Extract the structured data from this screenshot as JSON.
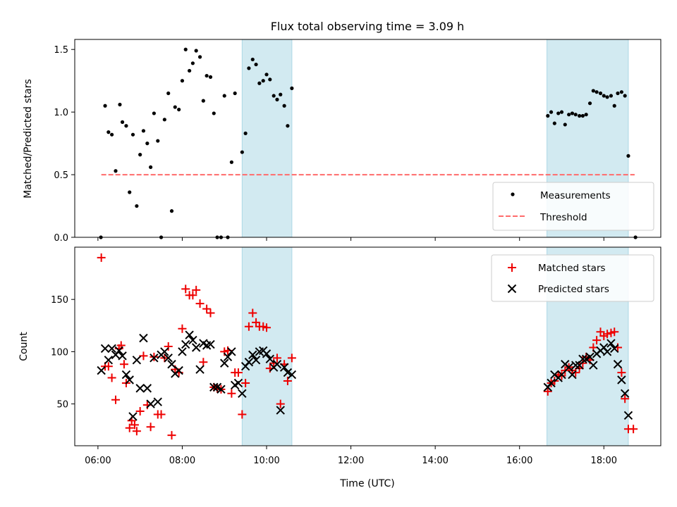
{
  "title": "Flux total observing time = 3.09 h",
  "colors": {
    "measurement": "#000000",
    "threshold": "#ff6b6b",
    "matched": "#ee0000",
    "predicted": "#000000",
    "shade": "#add8e6"
  },
  "chart_data": [
    {
      "type": "scatter",
      "ylabel": "Matched/Predicted stars",
      "xlabel": "",
      "xlim": [
        5.45,
        19.35
      ],
      "ylim": [
        0,
        1.58
      ],
      "yticks": [
        0,
        0.5,
        1,
        1.5
      ],
      "ytick_labels": [
        "0.0",
        "0.5",
        "1.0",
        "1.5"
      ],
      "shaded_regions": [
        [
          9.42,
          10.6
        ],
        [
          16.65,
          18.58
        ]
      ],
      "legend_position": "lower-right",
      "series": [
        {
          "name": "Measurements",
          "marker": "dot",
          "points": [
            [
              6.07,
              0.0
            ],
            [
              6.17,
              1.05
            ],
            [
              6.25,
              0.84
            ],
            [
              6.33,
              0.82
            ],
            [
              6.42,
              0.53
            ],
            [
              6.52,
              1.06
            ],
            [
              6.58,
              0.92
            ],
            [
              6.67,
              0.89
            ],
            [
              6.75,
              0.36
            ],
            [
              6.83,
              0.82
            ],
            [
              6.92,
              0.25
            ],
            [
              7.0,
              0.66
            ],
            [
              7.08,
              0.85
            ],
            [
              7.17,
              0.75
            ],
            [
              7.25,
              0.56
            ],
            [
              7.33,
              0.99
            ],
            [
              7.42,
              0.77
            ],
            [
              7.5,
              0.0
            ],
            [
              7.58,
              0.94
            ],
            [
              7.67,
              1.15
            ],
            [
              7.75,
              0.21
            ],
            [
              7.83,
              1.04
            ],
            [
              7.92,
              1.02
            ],
            [
              8.0,
              1.25
            ],
            [
              8.08,
              1.5
            ],
            [
              8.17,
              1.33
            ],
            [
              8.25,
              1.39
            ],
            [
              8.33,
              1.49
            ],
            [
              8.42,
              1.44
            ],
            [
              8.5,
              1.09
            ],
            [
              8.58,
              1.29
            ],
            [
              8.67,
              1.28
            ],
            [
              8.75,
              0.99
            ],
            [
              8.83,
              0.0
            ],
            [
              8.92,
              0.0
            ],
            [
              9.0,
              1.13
            ],
            [
              9.08,
              0.0
            ],
            [
              9.17,
              0.6
            ],
            [
              9.25,
              1.15
            ],
            [
              9.42,
              0.68
            ],
            [
              9.5,
              0.83
            ],
            [
              9.58,
              1.35
            ],
            [
              9.67,
              1.42
            ],
            [
              9.75,
              1.38
            ],
            [
              9.83,
              1.23
            ],
            [
              9.92,
              1.25
            ],
            [
              10.0,
              1.3
            ],
            [
              10.08,
              1.26
            ],
            [
              10.17,
              1.13
            ],
            [
              10.25,
              1.1
            ],
            [
              10.33,
              1.14
            ],
            [
              10.42,
              1.05
            ],
            [
              10.5,
              0.89
            ],
            [
              10.6,
              1.19
            ],
            [
              16.67,
              0.97
            ],
            [
              16.75,
              1.0
            ],
            [
              16.83,
              0.91
            ],
            [
              16.92,
              0.99
            ],
            [
              17.0,
              1.0
            ],
            [
              17.08,
              0.9
            ],
            [
              17.17,
              0.98
            ],
            [
              17.25,
              0.99
            ],
            [
              17.33,
              0.98
            ],
            [
              17.42,
              0.97
            ],
            [
              17.5,
              0.97
            ],
            [
              17.58,
              0.98
            ],
            [
              17.67,
              1.07
            ],
            [
              17.75,
              1.17
            ],
            [
              17.83,
              1.16
            ],
            [
              17.92,
              1.15
            ],
            [
              18.0,
              1.13
            ],
            [
              18.08,
              1.12
            ],
            [
              18.17,
              1.13
            ],
            [
              18.25,
              1.05
            ],
            [
              18.33,
              1.15
            ],
            [
              18.42,
              1.16
            ],
            [
              18.5,
              1.13
            ],
            [
              18.58,
              0.65
            ],
            [
              18.75,
              0.0
            ]
          ]
        },
        {
          "name": "Threshold",
          "type": "line",
          "style": "dashed",
          "x": [
            6.08,
            18.73
          ],
          "y": [
            0.5,
            0.5
          ]
        }
      ]
    },
    {
      "type": "scatter",
      "ylabel": "Count",
      "xlabel": "Time (UTC)",
      "xlim": [
        5.45,
        19.35
      ],
      "ylim": [
        10,
        200
      ],
      "yticks": [
        50,
        100,
        150
      ],
      "ytick_labels": [
        "50",
        "100",
        "150"
      ],
      "xticks": [
        6,
        8,
        10,
        12,
        14,
        16,
        18
      ],
      "xtick_labels": [
        "06:00",
        "08:00",
        "10:00",
        "12:00",
        "14:00",
        "16:00",
        "18:00"
      ],
      "shaded_regions": [
        [
          9.42,
          10.6
        ],
        [
          16.65,
          18.58
        ]
      ],
      "legend_position": "upper-right",
      "series": [
        {
          "name": "Matched stars",
          "marker": "plus",
          "points": [
            [
              6.08,
              190
            ],
            [
              6.17,
              86
            ],
            [
              6.25,
              86
            ],
            [
              6.33,
              75
            ],
            [
              6.42,
              54
            ],
            [
              6.5,
              103
            ],
            [
              6.55,
              106
            ],
            [
              6.62,
              88
            ],
            [
              6.67,
              70
            ],
            [
              6.75,
              27
            ],
            [
              6.8,
              34
            ],
            [
              6.87,
              30
            ],
            [
              6.92,
              24
            ],
            [
              7.0,
              43
            ],
            [
              7.08,
              96
            ],
            [
              7.17,
              49
            ],
            [
              7.25,
              28
            ],
            [
              7.33,
              95
            ],
            [
              7.42,
              40
            ],
            [
              7.5,
              40
            ],
            [
              7.58,
              94
            ],
            [
              7.67,
              105
            ],
            [
              7.75,
              20
            ],
            [
              7.83,
              83
            ],
            [
              7.92,
              80
            ],
            [
              8.0,
              122
            ],
            [
              8.08,
              160
            ],
            [
              8.17,
              154
            ],
            [
              8.25,
              154
            ],
            [
              8.33,
              159
            ],
            [
              8.42,
              146
            ],
            [
              8.5,
              90
            ],
            [
              8.58,
              141
            ],
            [
              8.67,
              137
            ],
            [
              8.75,
              66
            ],
            [
              8.83,
              65
            ],
            [
              8.92,
              64
            ],
            [
              9.0,
              100
            ],
            [
              9.08,
              101
            ],
            [
              9.17,
              60
            ],
            [
              9.25,
              80
            ],
            [
              9.33,
              80
            ],
            [
              9.42,
              40
            ],
            [
              9.5,
              70
            ],
            [
              9.58,
              124
            ],
            [
              9.67,
              137
            ],
            [
              9.75,
              128
            ],
            [
              9.83,
              124
            ],
            [
              9.92,
              124
            ],
            [
              10.0,
              123
            ],
            [
              10.08,
              84
            ],
            [
              10.17,
              89
            ],
            [
              10.25,
              94
            ],
            [
              10.33,
              50
            ],
            [
              10.42,
              88
            ],
            [
              10.5,
              72
            ],
            [
              10.6,
              94
            ],
            [
              16.67,
              62
            ],
            [
              16.75,
              70
            ],
            [
              16.83,
              72
            ],
            [
              16.92,
              78
            ],
            [
              17.0,
              77
            ],
            [
              17.08,
              82
            ],
            [
              17.17,
              85
            ],
            [
              17.25,
              82
            ],
            [
              17.33,
              80
            ],
            [
              17.42,
              84
            ],
            [
              17.5,
              89
            ],
            [
              17.58,
              95
            ],
            [
              17.67,
              92
            ],
            [
              17.75,
              104
            ],
            [
              17.83,
              111
            ],
            [
              17.92,
              119
            ],
            [
              18.0,
              115
            ],
            [
              18.08,
              117
            ],
            [
              18.17,
              118
            ],
            [
              18.25,
              119
            ],
            [
              18.33,
              104
            ],
            [
              18.42,
              80
            ],
            [
              18.5,
              55
            ],
            [
              18.58,
              26
            ],
            [
              18.7,
              26
            ]
          ]
        },
        {
          "name": "Predicted stars",
          "marker": "x",
          "points": [
            [
              6.08,
              82
            ],
            [
              6.17,
              103
            ],
            [
              6.25,
              92
            ],
            [
              6.33,
              103
            ],
            [
              6.42,
              97
            ],
            [
              6.5,
              101
            ],
            [
              6.58,
              96
            ],
            [
              6.67,
              78
            ],
            [
              6.75,
              73
            ],
            [
              6.83,
              38
            ],
            [
              6.92,
              92
            ],
            [
              7.0,
              65
            ],
            [
              7.08,
              113
            ],
            [
              7.17,
              65
            ],
            [
              7.25,
              50
            ],
            [
              7.33,
              94
            ],
            [
              7.42,
              52
            ],
            [
              7.5,
              97
            ],
            [
              7.58,
              100
            ],
            [
              7.67,
              94
            ],
            [
              7.75,
              88
            ],
            [
              7.83,
              79
            ],
            [
              7.92,
              82
            ],
            [
              8.0,
              100
            ],
            [
              8.08,
              107
            ],
            [
              8.17,
              116
            ],
            [
              8.25,
              111
            ],
            [
              8.33,
              104
            ],
            [
              8.42,
              83
            ],
            [
              8.5,
              108
            ],
            [
              8.58,
              106
            ],
            [
              8.67,
              107
            ],
            [
              8.75,
              66
            ],
            [
              8.83,
              66
            ],
            [
              8.92,
              64
            ],
            [
              9.0,
              89
            ],
            [
              9.08,
              95
            ],
            [
              9.17,
              100
            ],
            [
              9.25,
              68
            ],
            [
              9.33,
              70
            ],
            [
              9.42,
              60
            ],
            [
              9.5,
              86
            ],
            [
              9.58,
              90
            ],
            [
              9.67,
              97
            ],
            [
              9.75,
              92
            ],
            [
              9.83,
              100
            ],
            [
              9.92,
              101
            ],
            [
              10.0,
              98
            ],
            [
              10.08,
              93
            ],
            [
              10.17,
              85
            ],
            [
              10.25,
              88
            ],
            [
              10.33,
              44
            ],
            [
              10.42,
              85
            ],
            [
              10.5,
              80
            ],
            [
              10.6,
              78
            ],
            [
              16.67,
              66
            ],
            [
              16.75,
              70
            ],
            [
              16.83,
              78
            ],
            [
              16.92,
              75
            ],
            [
              17.0,
              78
            ],
            [
              17.08,
              88
            ],
            [
              17.17,
              85
            ],
            [
              17.25,
              78
            ],
            [
              17.33,
              87
            ],
            [
              17.42,
              87
            ],
            [
              17.5,
              93
            ],
            [
              17.58,
              93
            ],
            [
              17.67,
              95
            ],
            [
              17.75,
              87
            ],
            [
              17.83,
              98
            ],
            [
              17.92,
              101
            ],
            [
              18.0,
              104
            ],
            [
              18.08,
              100
            ],
            [
              18.17,
              108
            ],
            [
              18.25,
              103
            ],
            [
              18.33,
              88
            ],
            [
              18.42,
              73
            ],
            [
              18.5,
              60
            ],
            [
              18.58,
              39
            ]
          ]
        }
      ]
    }
  ]
}
